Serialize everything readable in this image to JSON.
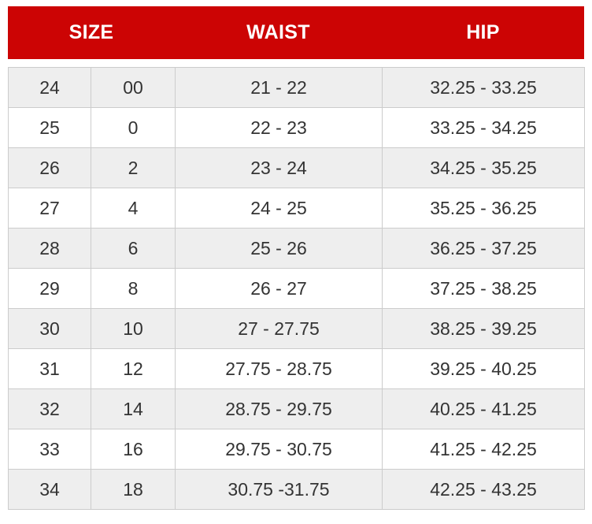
{
  "colors": {
    "header_bg": "#cc0404",
    "header_text": "#ffffff",
    "row_alt_bg": "#eeeeee",
    "row_bg": "#ffffff",
    "border": "#cccccc",
    "body_text": "#333333"
  },
  "chart_data": {
    "type": "table",
    "headers": [
      "SIZE",
      "WAIST",
      "HIP"
    ],
    "header_layout": {
      "size_colspan": 2
    },
    "rows": [
      [
        "24",
        "00",
        "21 - 22",
        "32.25 - 33.25"
      ],
      [
        "25",
        "0",
        "22 - 23",
        "33.25 - 34.25"
      ],
      [
        "26",
        "2",
        "23 - 24",
        "34.25 - 35.25"
      ],
      [
        "27",
        "4",
        "24 - 25",
        "35.25 - 36.25"
      ],
      [
        "28",
        "6",
        "25 - 26",
        "36.25 - 37.25"
      ],
      [
        "29",
        "8",
        "26 - 27",
        "37.25 - 38.25"
      ],
      [
        "30",
        "10",
        "27 - 27.75",
        "38.25 - 39.25"
      ],
      [
        "31",
        "12",
        "27.75 - 28.75",
        "39.25 - 40.25"
      ],
      [
        "32",
        "14",
        "28.75 - 29.75",
        "40.25 - 41.25"
      ],
      [
        "33",
        "16",
        "29.75 - 30.75",
        "41.25 - 42.25"
      ],
      [
        "34",
        "18",
        "30.75 -31.75",
        "42.25 - 43.25"
      ]
    ]
  }
}
